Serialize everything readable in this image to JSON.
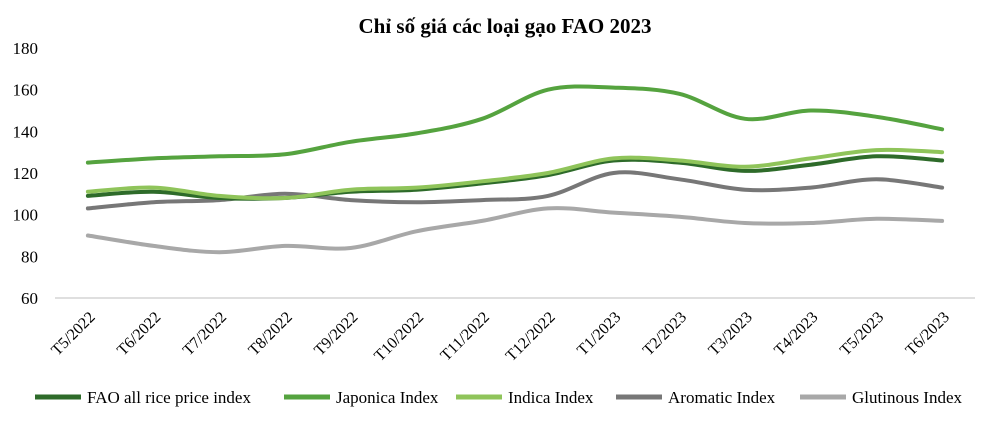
{
  "chart_data": {
    "type": "line",
    "title": "Chỉ số giá các loại gạo FAO 2023",
    "xlabel": "",
    "ylabel": "",
    "categories": [
      "T5/2022",
      "T6/2022",
      "T7/2022",
      "T8/2022",
      "T9/2022",
      "T10/2022",
      "T11/2022",
      "T12/2022",
      "T1/2023",
      "T2/2023",
      "T3/2023",
      "T4/2023",
      "T5/2023",
      "T6/2023"
    ],
    "ylim": [
      60,
      180
    ],
    "yticks": [
      60,
      80,
      100,
      120,
      140,
      160,
      180
    ],
    "grid": false,
    "legend_position": "bottom",
    "series": [
      {
        "name": "FAO all rice price index",
        "color": "#2e6b2a",
        "values": [
          109,
          111,
          108,
          108,
          111,
          112,
          115,
          119,
          126,
          125,
          121,
          124,
          128,
          126
        ]
      },
      {
        "name": "Japonica Index",
        "color": "#55a33f",
        "values": [
          125,
          127,
          128,
          129,
          135,
          139,
          146,
          160,
          161,
          158,
          146,
          150,
          147,
          141
        ]
      },
      {
        "name": "Indica Index",
        "color": "#8fc45a",
        "values": [
          111,
          113,
          109,
          108,
          112,
          113,
          116,
          120,
          127,
          126,
          123,
          127,
          131,
          130
        ]
      },
      {
        "name": "Aromatic Index",
        "color": "#777777",
        "values": [
          103,
          106,
          107,
          110,
          107,
          106,
          107,
          109,
          120,
          117,
          112,
          113,
          117,
          113
        ]
      },
      {
        "name": "Glutinous Index",
        "color": "#a8a8a8",
        "values": [
          90,
          85,
          82,
          85,
          84,
          92,
          97,
          103,
          101,
          99,
          96,
          96,
          98,
          97
        ]
      }
    ]
  }
}
